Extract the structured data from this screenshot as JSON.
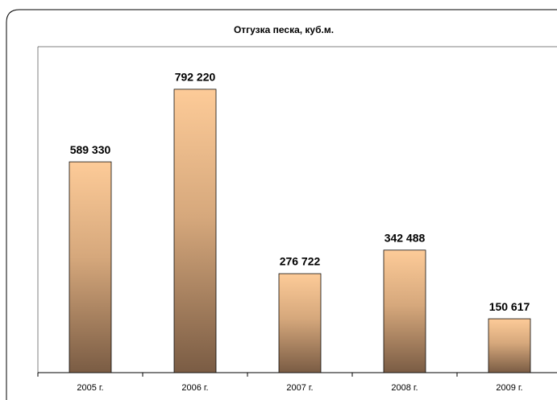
{
  "chart_data": {
    "type": "bar",
    "title": "Отгузка песка, куб.м.",
    "categories": [
      "2005 г.",
      "2006 г.",
      "2007 г.",
      "2008 г.",
      "2009 г."
    ],
    "values": [
      589330,
      792220,
      276722,
      342488,
      150617
    ],
    "value_labels": [
      "589 330",
      "792 220",
      "276 722",
      "342 488",
      "150 617"
    ],
    "ylim": [
      0,
      900000
    ],
    "color": [
      "#fdcb98",
      "#7a5c44"
    ]
  }
}
